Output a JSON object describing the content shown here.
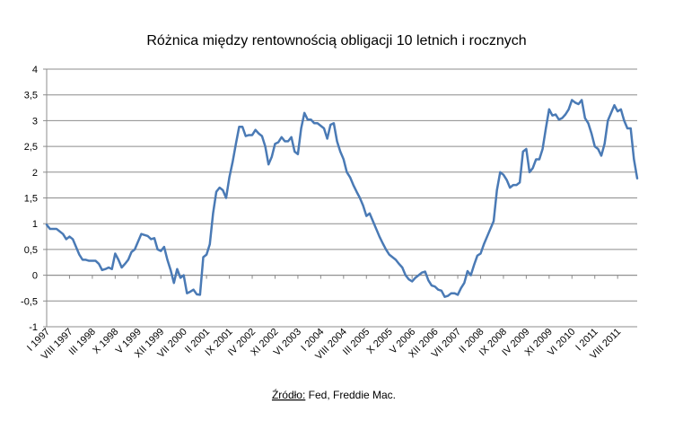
{
  "chart_data": {
    "type": "line",
    "title": "Różnica między rentownością obligacji 10 letnich i rocznych",
    "source_note_prefix": "Źródło:",
    "source_note_rest": " Fed, Freddie Mac.",
    "xlabel": "",
    "ylabel": "",
    "ylim": [
      -1,
      4
    ],
    "yticks": [
      -1,
      -0.5,
      0,
      0.5,
      1,
      1.5,
      2,
      2.5,
      3,
      3.5,
      4
    ],
    "ytick_labels": [
      "-1",
      "-0,5",
      "0",
      "0,5",
      "1",
      "1,5",
      "2",
      "2,5",
      "3",
      "3,5",
      "4"
    ],
    "grid": true,
    "legend": "none",
    "line_color": "#4a7ab5",
    "x_start": "I 1997",
    "x_tick_labels": [
      "I 1997",
      "VIII 1997",
      "III 1998",
      "X 1998",
      "V 1999",
      "XII 1999",
      "VII 2000",
      "II 2001",
      "IX 2001",
      "IV 2002",
      "XI 2002",
      "VI 2003",
      "I 2004",
      "VIII 2004",
      "III 2005",
      "X 2005",
      "V 2006",
      "XII 2006",
      "VII 2007",
      "II 2008",
      "IX 2008",
      "IV 2009",
      "XI 2009",
      "VI 2010",
      "I 2011",
      "VIII 2011"
    ],
    "x_tick_every_months": 7,
    "series": [
      {
        "values": [
          0.98,
          0.9,
          0.9,
          0.9,
          0.85,
          0.8,
          0.7,
          0.75,
          0.7,
          0.55,
          0.4,
          0.3,
          0.3,
          0.28,
          0.28,
          0.28,
          0.22,
          0.1,
          0.12,
          0.15,
          0.12,
          0.42,
          0.3,
          0.15,
          0.22,
          0.3,
          0.45,
          0.5,
          0.65,
          0.8,
          0.78,
          0.76,
          0.7,
          0.72,
          0.5,
          0.47,
          0.55,
          0.3,
          0.1,
          -0.15,
          0.12,
          -0.05,
          0.0,
          -0.35,
          -0.32,
          -0.28,
          -0.37,
          -0.38,
          0.35,
          0.4,
          0.6,
          1.2,
          1.62,
          1.7,
          1.65,
          1.5,
          1.9,
          2.2,
          2.55,
          2.88,
          2.88,
          2.7,
          2.72,
          2.72,
          2.82,
          2.75,
          2.7,
          2.5,
          2.15,
          2.3,
          2.55,
          2.58,
          2.68,
          2.6,
          2.6,
          2.68,
          2.4,
          2.35,
          2.85,
          3.15,
          3.02,
          3.02,
          2.95,
          2.95,
          2.9,
          2.85,
          2.65,
          2.92,
          2.95,
          2.6,
          2.4,
          2.25,
          2.0,
          1.9,
          1.75,
          1.62,
          1.5,
          1.35,
          1.15,
          1.2,
          1.05,
          0.9,
          0.75,
          0.62,
          0.5,
          0.4,
          0.35,
          0.3,
          0.22,
          0.15,
          0.0,
          -0.08,
          -0.12,
          -0.05,
          0.0,
          0.05,
          0.07,
          -0.1,
          -0.2,
          -0.22,
          -0.28,
          -0.3,
          -0.42,
          -0.4,
          -0.35,
          -0.35,
          -0.38,
          -0.25,
          -0.15,
          0.08,
          0.0,
          0.2,
          0.38,
          0.42,
          0.6,
          0.75,
          0.9,
          1.05,
          1.65,
          2.0,
          1.95,
          1.85,
          1.7,
          1.75,
          1.75,
          1.8,
          2.4,
          2.45,
          2.0,
          2.08,
          2.25,
          2.25,
          2.45,
          2.85,
          3.22,
          3.1,
          3.12,
          3.02,
          3.05,
          3.12,
          3.22,
          3.4,
          3.35,
          3.32,
          3.4,
          3.05,
          2.95,
          2.75,
          2.5,
          2.45,
          2.32,
          2.55,
          3.0,
          3.15,
          3.3,
          3.18,
          3.22,
          3.0,
          2.85,
          2.85,
          2.25,
          1.88
        ]
      }
    ]
  }
}
